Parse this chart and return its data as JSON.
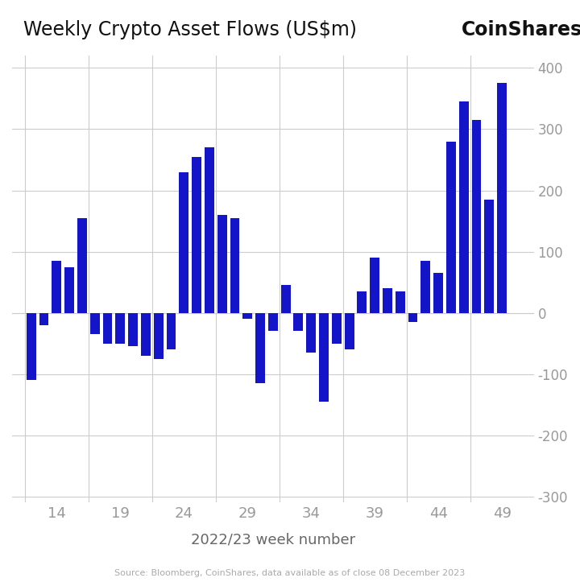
{
  "title": "Weekly Crypto Asset Flows (US$m)",
  "coinshares_label": "CoinShares",
  "xlabel": "2022/23 week number",
  "source_text": "Source: Bloomberg, CoinShares, data available as of close 08 December 2023",
  "bar_color": "#1414c8",
  "background_color": "#ffffff",
  "grid_color": "#cccccc",
  "ylim": [
    -310,
    420
  ],
  "yticks": [
    -300,
    -200,
    -100,
    0,
    100,
    200,
    300,
    400
  ],
  "xticks": [
    14,
    19,
    24,
    29,
    34,
    39,
    44,
    49
  ],
  "weeks": [
    12,
    13,
    14,
    15,
    16,
    17,
    18,
    19,
    20,
    21,
    22,
    23,
    24,
    25,
    26,
    27,
    28,
    29,
    30,
    31,
    32,
    33,
    34,
    35,
    36,
    37,
    38,
    39,
    40,
    41,
    42,
    43,
    44,
    45,
    46,
    47,
    48,
    49
  ],
  "values": [
    -110,
    -20,
    85,
    75,
    155,
    -35,
    -50,
    -50,
    -55,
    -70,
    -75,
    -60,
    230,
    255,
    270,
    160,
    155,
    -10,
    -115,
    -30,
    45,
    -30,
    -65,
    -145,
    -50,
    -60,
    35,
    90,
    40,
    35,
    -15,
    85,
    65,
    280,
    345,
    315,
    185,
    375
  ]
}
